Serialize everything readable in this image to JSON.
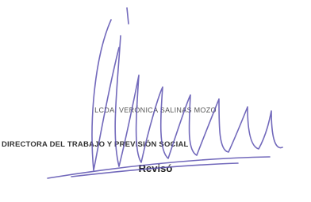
{
  "signature_block": {
    "name": "LCDA. VERÓNICA SALINAS MOZO",
    "position": "DIRECTORA DEL TRABAJO Y PREVISIÓN SOCIAL",
    "caption": "Revisó"
  }
}
